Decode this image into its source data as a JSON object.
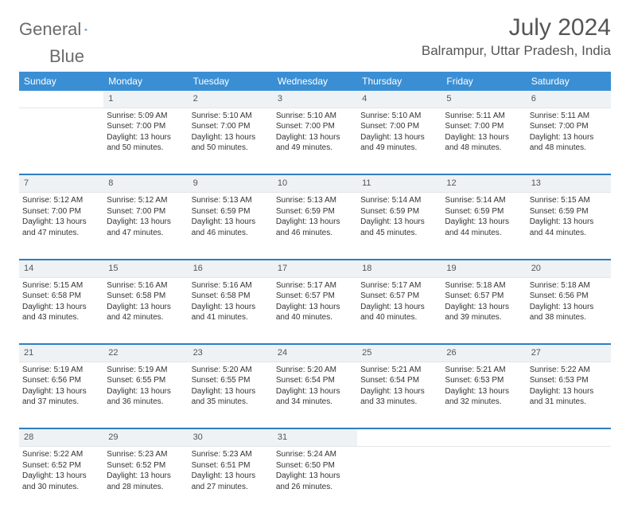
{
  "brand": {
    "text1": "General",
    "text2": "Blue"
  },
  "title": "July 2024",
  "location": "Balrampur, Uttar Pradesh, India",
  "colors": {
    "header_bg": "#3a8fd4",
    "accent": "#2f7fc1",
    "daynum_bg": "#eef2f5",
    "text": "#333333"
  },
  "weekdays": [
    "Sunday",
    "Monday",
    "Tuesday",
    "Wednesday",
    "Thursday",
    "Friday",
    "Saturday"
  ],
  "weeks": [
    {
      "nums": [
        "",
        "1",
        "2",
        "3",
        "4",
        "5",
        "6"
      ],
      "cells": [
        null,
        {
          "sunrise": "5:09 AM",
          "sunset": "7:00 PM",
          "daylight": "13 hours and 50 minutes."
        },
        {
          "sunrise": "5:10 AM",
          "sunset": "7:00 PM",
          "daylight": "13 hours and 50 minutes."
        },
        {
          "sunrise": "5:10 AM",
          "sunset": "7:00 PM",
          "daylight": "13 hours and 49 minutes."
        },
        {
          "sunrise": "5:10 AM",
          "sunset": "7:00 PM",
          "daylight": "13 hours and 49 minutes."
        },
        {
          "sunrise": "5:11 AM",
          "sunset": "7:00 PM",
          "daylight": "13 hours and 48 minutes."
        },
        {
          "sunrise": "5:11 AM",
          "sunset": "7:00 PM",
          "daylight": "13 hours and 48 minutes."
        }
      ]
    },
    {
      "nums": [
        "7",
        "8",
        "9",
        "10",
        "11",
        "12",
        "13"
      ],
      "cells": [
        {
          "sunrise": "5:12 AM",
          "sunset": "7:00 PM",
          "daylight": "13 hours and 47 minutes."
        },
        {
          "sunrise": "5:12 AM",
          "sunset": "7:00 PM",
          "daylight": "13 hours and 47 minutes."
        },
        {
          "sunrise": "5:13 AM",
          "sunset": "6:59 PM",
          "daylight": "13 hours and 46 minutes."
        },
        {
          "sunrise": "5:13 AM",
          "sunset": "6:59 PM",
          "daylight": "13 hours and 46 minutes."
        },
        {
          "sunrise": "5:14 AM",
          "sunset": "6:59 PM",
          "daylight": "13 hours and 45 minutes."
        },
        {
          "sunrise": "5:14 AM",
          "sunset": "6:59 PM",
          "daylight": "13 hours and 44 minutes."
        },
        {
          "sunrise": "5:15 AM",
          "sunset": "6:59 PM",
          "daylight": "13 hours and 44 minutes."
        }
      ]
    },
    {
      "nums": [
        "14",
        "15",
        "16",
        "17",
        "18",
        "19",
        "20"
      ],
      "cells": [
        {
          "sunrise": "5:15 AM",
          "sunset": "6:58 PM",
          "daylight": "13 hours and 43 minutes."
        },
        {
          "sunrise": "5:16 AM",
          "sunset": "6:58 PM",
          "daylight": "13 hours and 42 minutes."
        },
        {
          "sunrise": "5:16 AM",
          "sunset": "6:58 PM",
          "daylight": "13 hours and 41 minutes."
        },
        {
          "sunrise": "5:17 AM",
          "sunset": "6:57 PM",
          "daylight": "13 hours and 40 minutes."
        },
        {
          "sunrise": "5:17 AM",
          "sunset": "6:57 PM",
          "daylight": "13 hours and 40 minutes."
        },
        {
          "sunrise": "5:18 AM",
          "sunset": "6:57 PM",
          "daylight": "13 hours and 39 minutes."
        },
        {
          "sunrise": "5:18 AM",
          "sunset": "6:56 PM",
          "daylight": "13 hours and 38 minutes."
        }
      ]
    },
    {
      "nums": [
        "21",
        "22",
        "23",
        "24",
        "25",
        "26",
        "27"
      ],
      "cells": [
        {
          "sunrise": "5:19 AM",
          "sunset": "6:56 PM",
          "daylight": "13 hours and 37 minutes."
        },
        {
          "sunrise": "5:19 AM",
          "sunset": "6:55 PM",
          "daylight": "13 hours and 36 minutes."
        },
        {
          "sunrise": "5:20 AM",
          "sunset": "6:55 PM",
          "daylight": "13 hours and 35 minutes."
        },
        {
          "sunrise": "5:20 AM",
          "sunset": "6:54 PM",
          "daylight": "13 hours and 34 minutes."
        },
        {
          "sunrise": "5:21 AM",
          "sunset": "6:54 PM",
          "daylight": "13 hours and 33 minutes."
        },
        {
          "sunrise": "5:21 AM",
          "sunset": "6:53 PM",
          "daylight": "13 hours and 32 minutes."
        },
        {
          "sunrise": "5:22 AM",
          "sunset": "6:53 PM",
          "daylight": "13 hours and 31 minutes."
        }
      ]
    },
    {
      "nums": [
        "28",
        "29",
        "30",
        "31",
        "",
        "",
        ""
      ],
      "cells": [
        {
          "sunrise": "5:22 AM",
          "sunset": "6:52 PM",
          "daylight": "13 hours and 30 minutes."
        },
        {
          "sunrise": "5:23 AM",
          "sunset": "6:52 PM",
          "daylight": "13 hours and 28 minutes."
        },
        {
          "sunrise": "5:23 AM",
          "sunset": "6:51 PM",
          "daylight": "13 hours and 27 minutes."
        },
        {
          "sunrise": "5:24 AM",
          "sunset": "6:50 PM",
          "daylight": "13 hours and 26 minutes."
        },
        null,
        null,
        null
      ]
    }
  ],
  "labels": {
    "sunrise": "Sunrise: ",
    "sunset": "Sunset: ",
    "daylight": "Daylight: "
  }
}
